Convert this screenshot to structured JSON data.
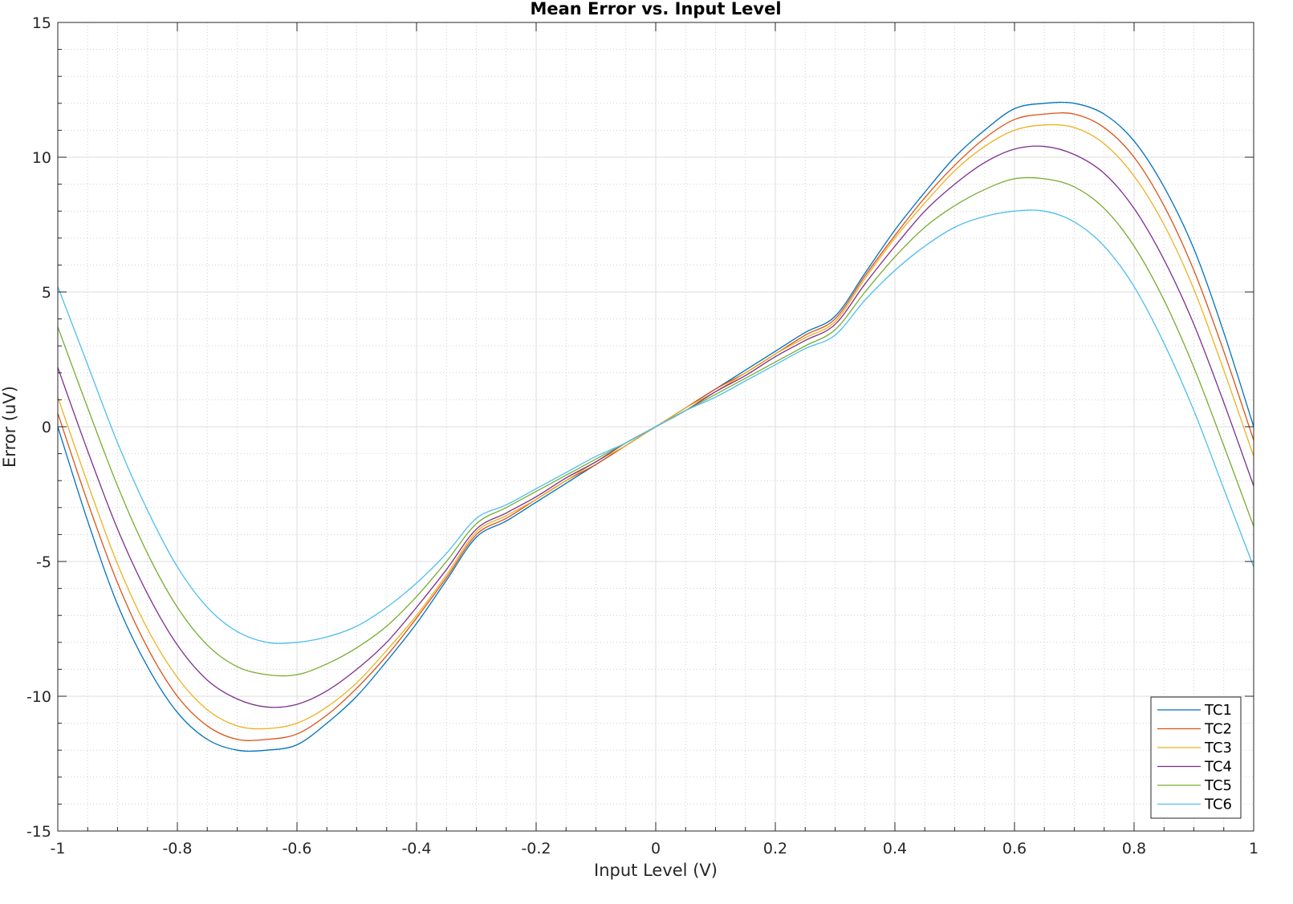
{
  "chart_data": {
    "type": "line",
    "title": "Mean Error vs. Input Level",
    "xlabel": "Input Level (V)",
    "ylabel": "Error (uV)",
    "xlim": [
      -1,
      1
    ],
    "ylim": [
      -15,
      15
    ],
    "x_ticks": [
      -1,
      -0.8,
      -0.6,
      -0.4,
      -0.2,
      0,
      0.2,
      0.4,
      0.6,
      0.8,
      1
    ],
    "x_tick_labels": [
      "-1",
      "-0.8",
      "-0.6",
      "-0.4",
      "-0.2",
      "0",
      "0.2",
      "0.4",
      "0.6",
      "0.8",
      "1"
    ],
    "y_ticks": [
      -15,
      -10,
      -5,
      0,
      5,
      10,
      15
    ],
    "y_tick_labels": [
      "-15",
      "-10",
      "-5",
      "0",
      "5",
      "10",
      "15"
    ],
    "grid": true,
    "minor_grid": true,
    "legend_position": "bottom-right",
    "x": [
      -1,
      -0.95,
      -0.9,
      -0.85,
      -0.8,
      -0.75,
      -0.7,
      -0.65,
      -0.6,
      -0.55,
      -0.5,
      -0.45,
      -0.4,
      -0.35,
      -0.3,
      -0.25,
      -0.2,
      -0.15,
      -0.1,
      -0.05,
      0,
      0.05,
      0.1,
      0.15,
      0.2,
      0.25,
      0.3,
      0.35,
      0.4,
      0.45,
      0.5,
      0.55,
      0.6,
      0.65,
      0.7,
      0.75,
      0.8,
      0.85,
      0.9,
      0.95,
      1
    ],
    "series": [
      {
        "name": "TC1",
        "color": "#0072bd",
        "values": [
          0.0,
          -3.5,
          -6.6,
          -8.9,
          -10.6,
          -11.6,
          -12.0,
          -12.0,
          -11.8,
          -11.0,
          -10.0,
          -8.7,
          -7.3,
          -5.7,
          -4.1,
          -3.5,
          -2.8,
          -2.1,
          -1.4,
          -0.7,
          0.0,
          0.7,
          1.4,
          2.1,
          2.8,
          3.5,
          4.1,
          5.7,
          7.3,
          8.7,
          10.0,
          11.0,
          11.8,
          12.0,
          12.0,
          11.6,
          10.6,
          8.9,
          6.6,
          3.5,
          0.0
        ]
      },
      {
        "name": "TC2",
        "color": "#d95319",
        "values": [
          0.5,
          -2.8,
          -5.8,
          -8.2,
          -10.0,
          -11.1,
          -11.6,
          -11.6,
          -11.4,
          -10.7,
          -9.7,
          -8.5,
          -7.1,
          -5.6,
          -4.0,
          -3.4,
          -2.7,
          -2.0,
          -1.4,
          -0.7,
          0.0,
          0.7,
          1.4,
          2.0,
          2.7,
          3.4,
          4.0,
          5.6,
          7.1,
          8.5,
          9.7,
          10.7,
          11.4,
          11.6,
          11.6,
          11.1,
          10.0,
          8.2,
          5.8,
          2.8,
          -0.5
        ]
      },
      {
        "name": "TC3",
        "color": "#edb120",
        "values": [
          1.1,
          -2.1,
          -5.1,
          -7.5,
          -9.3,
          -10.5,
          -11.1,
          -11.2,
          -11.0,
          -10.4,
          -9.5,
          -8.3,
          -7.0,
          -5.5,
          -3.9,
          -3.3,
          -2.7,
          -2.0,
          -1.3,
          -0.7,
          0.0,
          0.7,
          1.3,
          2.0,
          2.7,
          3.3,
          3.9,
          5.5,
          7.0,
          8.3,
          9.5,
          10.4,
          11.0,
          11.2,
          11.1,
          10.5,
          9.3,
          7.5,
          5.1,
          2.1,
          -1.1
        ]
      },
      {
        "name": "TC4",
        "color": "#7e2f8e",
        "values": [
          2.2,
          -0.9,
          -3.8,
          -6.2,
          -8.1,
          -9.4,
          -10.1,
          -10.4,
          -10.3,
          -9.8,
          -9.0,
          -8.0,
          -6.7,
          -5.3,
          -3.8,
          -3.2,
          -2.6,
          -1.9,
          -1.3,
          -0.6,
          0.0,
          0.6,
          1.3,
          1.9,
          2.6,
          3.2,
          3.8,
          5.3,
          6.7,
          8.0,
          9.0,
          9.8,
          10.3,
          10.4,
          10.1,
          9.4,
          8.1,
          6.2,
          3.8,
          0.9,
          -2.2
        ]
      },
      {
        "name": "TC5",
        "color": "#77ac30",
        "values": [
          3.7,
          0.7,
          -2.2,
          -4.7,
          -6.7,
          -8.1,
          -8.9,
          -9.2,
          -9.2,
          -8.8,
          -8.2,
          -7.4,
          -6.3,
          -5.0,
          -3.6,
          -3.0,
          -2.4,
          -1.8,
          -1.2,
          -0.6,
          0.0,
          0.6,
          1.2,
          1.8,
          2.4,
          3.0,
          3.6,
          5.0,
          6.3,
          7.4,
          8.2,
          8.8,
          9.2,
          9.2,
          8.9,
          8.1,
          6.7,
          4.7,
          2.2,
          -0.7,
          -3.7
        ]
      },
      {
        "name": "TC6",
        "color": "#4dbeee",
        "values": [
          5.2,
          2.3,
          -0.6,
          -3.1,
          -5.2,
          -6.7,
          -7.6,
          -8.0,
          -8.0,
          -7.8,
          -7.4,
          -6.7,
          -5.8,
          -4.7,
          -3.4,
          -2.9,
          -2.3,
          -1.7,
          -1.1,
          -0.6,
          0.0,
          0.6,
          1.1,
          1.7,
          2.3,
          2.9,
          3.4,
          4.7,
          5.8,
          6.7,
          7.4,
          7.8,
          8.0,
          8.0,
          7.6,
          6.7,
          5.2,
          3.1,
          0.6,
          -2.3,
          -5.2
        ]
      }
    ]
  }
}
